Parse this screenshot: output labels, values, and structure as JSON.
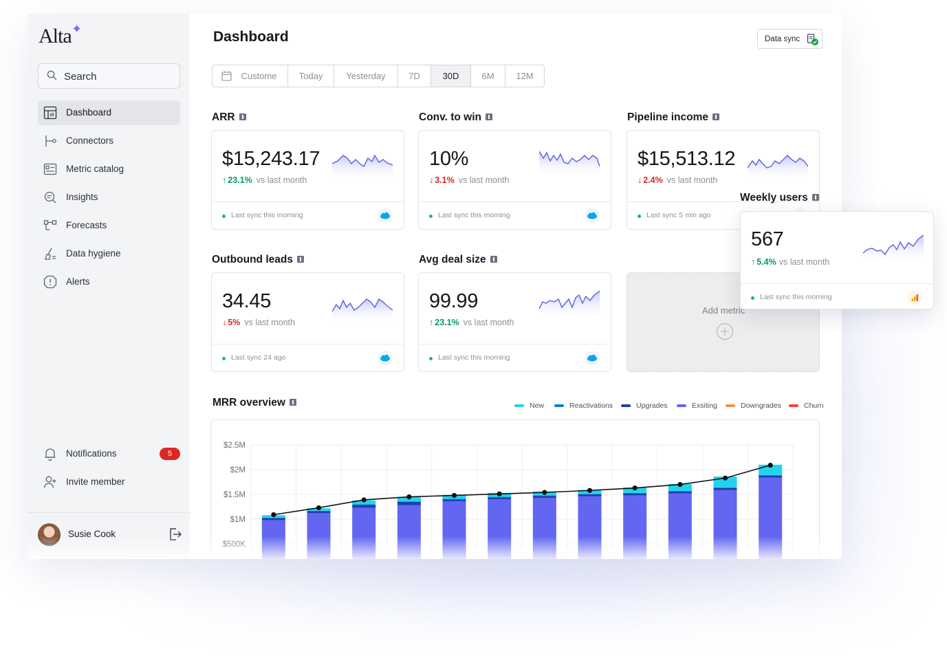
{
  "app": {
    "logo": "Alta"
  },
  "sidebar": {
    "search_label": "Search",
    "items": [
      {
        "label": "Dashboard",
        "icon": "dashboard-icon",
        "active": true
      },
      {
        "label": "Connectors",
        "icon": "connectors-icon"
      },
      {
        "label": "Metric catalog",
        "icon": "metric-catalog-icon"
      },
      {
        "label": "Insights",
        "icon": "insights-icon"
      },
      {
        "label": "Forecasts",
        "icon": "forecasts-icon"
      },
      {
        "label": "Data hygiene",
        "icon": "broom-icon"
      },
      {
        "label": "Alerts",
        "icon": "alert-icon"
      }
    ],
    "notifications": {
      "label": "Notifications",
      "count": "5"
    },
    "invite_label": "Invite member",
    "user": {
      "name": "Susie Cook"
    }
  },
  "header": {
    "title": "Dashboard",
    "data_sync_label": "Data sync"
  },
  "range_filter": {
    "options": [
      "Custome",
      "Today",
      "Yesterday",
      "7D",
      "30D",
      "6M",
      "12M"
    ],
    "selected": "30D"
  },
  "metrics": [
    {
      "title": "ARR",
      "value": "$15,243.17",
      "change": "23.1%",
      "direction": "up",
      "vs": "vs last month",
      "sync": "Last sync this morning",
      "source": "salesforce-icon"
    },
    {
      "title": "Conv. to win",
      "value": "10%",
      "change": "3.1%",
      "direction": "down",
      "vs": "vs last month",
      "sync": "Last sync this morning",
      "source": "salesforce-icon"
    },
    {
      "title": "Pipeline income",
      "value": "$15,513.12",
      "change": "2.4%",
      "direction": "down",
      "vs": "vs last month",
      "sync": "Last sync 5 min ago",
      "source": "salesforce-icon"
    },
    {
      "title": "Outbound leads",
      "value": "34.45",
      "change": "5%",
      "direction": "down",
      "vs": "vs last month",
      "sync": "Last sync 24 ago",
      "source": "salesforce-icon"
    },
    {
      "title": "Avg deal size",
      "value": "99.99",
      "change": "23.1%",
      "direction": "up",
      "vs": "vs last month",
      "sync": "Last sync this morning",
      "source": "salesforce-icon"
    }
  ],
  "add_metric_label": "Add metric",
  "weekly_users": {
    "title": "Weekly users",
    "value": "567",
    "change": "5.4%",
    "direction": "up",
    "vs": "vs last month",
    "sync": "Last sync this morning",
    "source": "google-analytics-icon"
  },
  "colors": {
    "new": "#22d3ee",
    "reactivations": "#0284c7",
    "upgrades": "#1e40af",
    "existing": "#6366f1",
    "downgrades": "#fb923c",
    "churn": "#ef4444",
    "up": "#059669",
    "down": "#dc2626"
  },
  "chart_data": {
    "title": "MRR overview",
    "type": "bar",
    "stacked": true,
    "y_ticks": [
      "$2.5M",
      "$2M",
      "$1.5M",
      "$1M",
      "$500K"
    ],
    "ylim": [
      0,
      2500000
    ],
    "legend": [
      "New",
      "Reactivations",
      "Upgrades",
      "Exsiting",
      "Downgrades",
      "Churn"
    ],
    "legend_position": "top-right",
    "grid": true,
    "series": [
      {
        "name": "Exsiting",
        "values": [
          980000,
          1120000,
          1230000,
          1280000,
          1360000,
          1400000,
          1430000,
          1460000,
          1480000,
          1520000,
          1590000,
          1840000
        ]
      },
      {
        "name": "Upgrades",
        "values": [
          40000,
          40000,
          60000,
          70000,
          40000,
          40000,
          40000,
          40000,
          40000,
          40000,
          40000,
          40000
        ]
      },
      {
        "name": "Reactivations",
        "values": [
          10000,
          10000,
          10000,
          10000,
          10000,
          10000,
          10000,
          10000,
          10000,
          10000,
          10000,
          10000
        ]
      },
      {
        "name": "New",
        "values": [
          50000,
          50000,
          80000,
          90000,
          80000,
          80000,
          80000,
          80000,
          110000,
          140000,
          220000,
          210000
        ]
      }
    ],
    "total_line": [
      1090000,
      1230000,
      1390000,
      1450000,
      1480000,
      1510000,
      1540000,
      1580000,
      1630000,
      1700000,
      1830000,
      2090000
    ]
  }
}
